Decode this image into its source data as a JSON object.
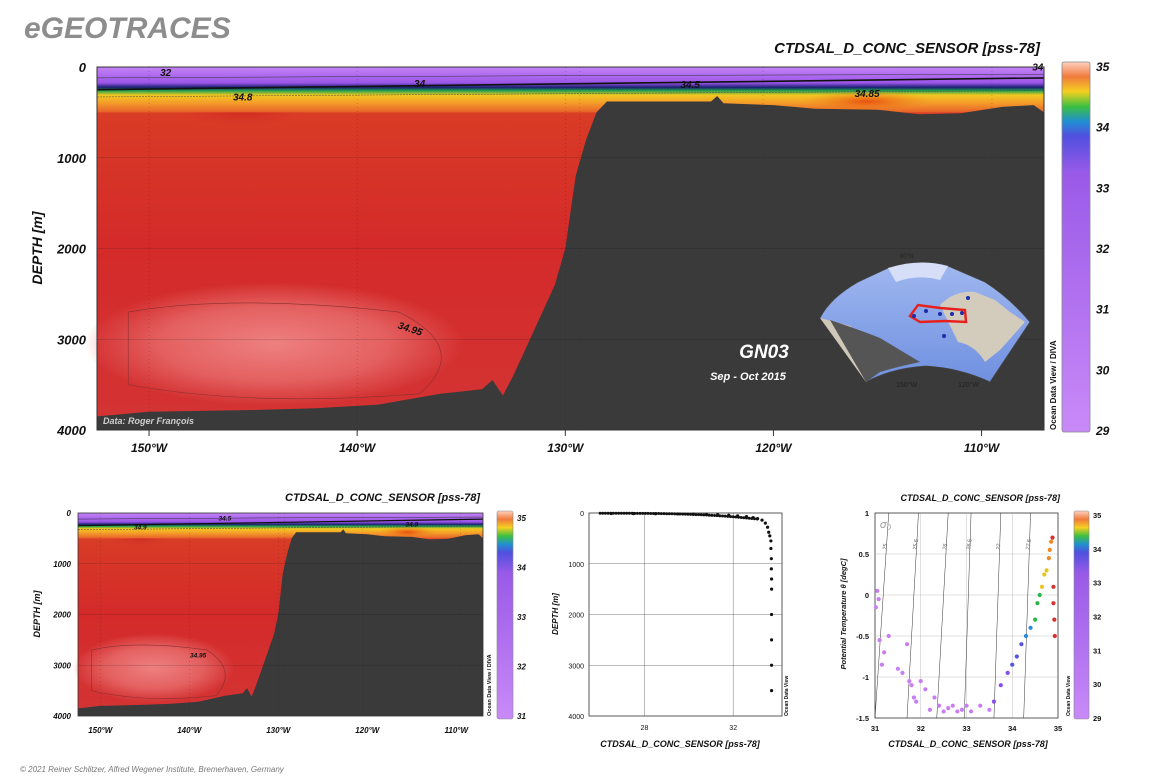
{
  "header": {
    "logo": "eGEOTRACES",
    "footer": "© 2021 Reiner Schlitzer, Alfred Wegener Institute, Bremerhaven, Germany"
  },
  "colors": {
    "land": "#3a3a3a",
    "accent_red": "#d2322d",
    "purple": "#b57bf0",
    "orange": "#f08a1e",
    "grey_text": "#8a8a8a"
  },
  "main_section": {
    "title": "CTDSAL_D_CONC_SENSOR [pss-78]",
    "ylabel": "DEPTH [m]",
    "credit": "Data: Roger François",
    "cruise_name": "GN03",
    "cruise_date": "Sep - Oct 2015",
    "odv_label": "Ocean Data View / DIVA",
    "depth_ticks": [
      "0",
      "1000",
      "2000",
      "3000",
      "4000"
    ],
    "lon_ticks": [
      "150°W",
      "140°W",
      "130°W",
      "120°W",
      "110°W"
    ],
    "colorbar_ticks": [
      "35",
      "34",
      "33",
      "32",
      "31",
      "30",
      "29"
    ],
    "contour_labels": [
      "32",
      "34",
      "34.5",
      "34.8",
      "34.85",
      "34.95",
      "34"
    ]
  },
  "small_section": {
    "title": "CTDSAL_D_CONC_SENSOR [pss-78]",
    "ylabel": "DEPTH [m]",
    "odv_label": "Ocean Data View / DIVA",
    "depth_ticks": [
      "0",
      "1000",
      "2000",
      "3000",
      "4000"
    ],
    "lon_ticks": [
      "150°W",
      "140°W",
      "130°W",
      "120°W",
      "110°W"
    ],
    "colorbar_ticks": [
      "35",
      "34",
      "33",
      "32",
      "31"
    ],
    "contour_labels": [
      "34.9",
      "34.5",
      "34.9",
      "34.95"
    ]
  },
  "profile_plot": {
    "xlabel": "CTDSAL_D_CONC_SENSOR [pss-78]",
    "ylabel": "DEPTH [m]",
    "odv_label": "Ocean Data View",
    "depth_ticks": [
      "0",
      "1000",
      "2000",
      "3000",
      "4000"
    ],
    "x_ticks": [
      "28",
      "32"
    ]
  },
  "ts_plot": {
    "title": "CTDSAL_D_CONC_SENSOR [pss-78]",
    "xlabel": "CTDSAL_D_CONC_SENSOR [pss-78]",
    "ylabel": "Potential Temperature θ [degC]",
    "odv_label": "Ocean Data View",
    "sigma_label": "σ₀",
    "x_ticks": [
      "31",
      "32",
      "33",
      "34",
      "35"
    ],
    "y_ticks": [
      "1",
      "0.5",
      "0",
      "-0.5",
      "-1",
      "-1.5"
    ],
    "isopycnal_labels": [
      "25",
      "25.5",
      "26",
      "26.5",
      "27",
      "27.5"
    ],
    "colorbar_ticks": [
      "35",
      "34",
      "33",
      "32",
      "31",
      "30",
      "29"
    ]
  },
  "chart_data": [
    {
      "type": "heatmap",
      "title": "CTDSAL_D_CONC_SENSOR [pss-78]",
      "xlabel": "",
      "ylabel": "DEPTH [m]",
      "xlim": [
        -152.5,
        -107
      ],
      "ylim": [
        4000,
        0
      ],
      "colorbar": {
        "min": 29,
        "max": 35
      },
      "bathymetry": [
        [
          -152.5,
          3850
        ],
        [
          -150,
          3800
        ],
        [
          -145,
          3780
        ],
        [
          -142,
          3760
        ],
        [
          -139,
          3720
        ],
        [
          -136,
          3600
        ],
        [
          -134,
          3550
        ],
        [
          -133.5,
          3450
        ],
        [
          -133,
          3620
        ],
        [
          -132.5,
          3400
        ],
        [
          -131.5,
          2900
        ],
        [
          -130.5,
          2400
        ],
        [
          -130,
          2000
        ],
        [
          -129.5,
          1200
        ],
        [
          -129,
          800
        ],
        [
          -128.5,
          500
        ],
        [
          -128,
          380
        ],
        [
          -125,
          380
        ],
        [
          -123,
          380
        ],
        [
          -122.7,
          320
        ],
        [
          -122.4,
          400
        ],
        [
          -120,
          420
        ],
        [
          -118,
          460
        ],
        [
          -115,
          470
        ],
        [
          -113,
          520
        ],
        [
          -111,
          510
        ],
        [
          -109,
          440
        ],
        [
          -107.5,
          420
        ],
        [
          -107,
          500
        ]
      ],
      "contours": [
        {
          "label": "32",
          "lon": -149.2,
          "depth": 100
        },
        {
          "label": "34",
          "lon": -137,
          "depth": 220
        },
        {
          "label": "34.5",
          "lon": -124,
          "depth": 230
        },
        {
          "label": "34.8",
          "lon": -145.5,
          "depth": 370
        },
        {
          "label": "34.85",
          "lon": -115.5,
          "depth": 330
        },
        {
          "label": "34.95",
          "lon": -137.5,
          "depth": 2920
        },
        {
          "label": "34",
          "lon": -107.3,
          "depth": 40
        }
      ]
    },
    {
      "type": "scatter",
      "xlabel": "CTDSAL_D_CONC_SENSOR [pss-78]",
      "ylabel": "DEPTH [m]",
      "xlim": [
        25.5,
        34.2
      ],
      "ylim": [
        4000,
        0
      ],
      "points": [
        [
          26.5,
          10
        ],
        [
          27.5,
          12
        ],
        [
          28.5,
          15
        ],
        [
          29.5,
          18
        ],
        [
          30.2,
          22
        ],
        [
          30.8,
          28
        ],
        [
          31.3,
          35
        ],
        [
          31.8,
          45
        ],
        [
          32.2,
          55
        ],
        [
          32.6,
          70
        ],
        [
          32.9,
          90
        ],
        [
          33.1,
          110
        ],
        [
          33.3,
          140
        ],
        [
          33.45,
          200
        ],
        [
          33.55,
          280
        ],
        [
          33.6,
          380
        ],
        [
          33.65,
          450
        ],
        [
          33.7,
          550
        ],
        [
          33.7,
          700
        ],
        [
          33.72,
          900
        ],
        [
          33.72,
          1100
        ],
        [
          33.73,
          1300
        ],
        [
          33.73,
          1500
        ],
        [
          33.73,
          2000
        ],
        [
          33.73,
          2500
        ],
        [
          33.73,
          3000
        ],
        [
          33.73,
          3500
        ]
      ]
    },
    {
      "type": "scatter",
      "title": "CTDSAL_D_CONC_SENSOR [pss-78]",
      "xlabel": "CTDSAL_D_CONC_SENSOR [pss-78]",
      "ylabel": "Potential Temperature θ [degC]",
      "xlim": [
        31,
        35
      ],
      "ylim": [
        -1.5,
        1
      ],
      "points": [
        [
          31.02,
          -0.15
        ],
        [
          31.05,
          0.05
        ],
        [
          31.08,
          -0.05
        ],
        [
          31.1,
          -0.55
        ],
        [
          31.15,
          -0.85
        ],
        [
          31.2,
          -0.7
        ],
        [
          31.3,
          -0.5
        ],
        [
          31.5,
          -0.9
        ],
        [
          31.6,
          -0.95
        ],
        [
          31.7,
          -0.6
        ],
        [
          31.75,
          -1.05
        ],
        [
          31.8,
          -1.1
        ],
        [
          31.85,
          -1.25
        ],
        [
          31.9,
          -1.3
        ],
        [
          32.0,
          -1.05
        ],
        [
          32.1,
          -1.15
        ],
        [
          32.2,
          -1.4
        ],
        [
          32.3,
          -1.25
        ],
        [
          32.4,
          -1.35
        ],
        [
          32.5,
          -1.42
        ],
        [
          32.6,
          -1.38
        ],
        [
          32.7,
          -1.35
        ],
        [
          32.8,
          -1.42
        ],
        [
          32.9,
          -1.4
        ],
        [
          33.0,
          -1.35
        ],
        [
          33.1,
          -1.42
        ],
        [
          33.3,
          -1.35
        ],
        [
          33.5,
          -1.4
        ],
        [
          33.6,
          -1.3
        ],
        [
          33.75,
          -1.1
        ],
        [
          33.9,
          -0.95
        ],
        [
          34.0,
          -0.85
        ],
        [
          34.1,
          -0.75
        ],
        [
          34.2,
          -0.6
        ],
        [
          34.3,
          -0.5
        ],
        [
          34.4,
          -0.4
        ],
        [
          34.5,
          -0.3
        ],
        [
          34.55,
          -0.1
        ],
        [
          34.6,
          0.0
        ],
        [
          34.65,
          0.1
        ],
        [
          34.7,
          0.25
        ],
        [
          34.75,
          0.3
        ],
        [
          34.8,
          0.45
        ],
        [
          34.82,
          0.55
        ],
        [
          34.85,
          0.65
        ],
        [
          34.88,
          0.7
        ],
        [
          34.9,
          0.1
        ],
        [
          34.9,
          -0.1
        ],
        [
          34.92,
          -0.3
        ],
        [
          34.93,
          -0.5
        ]
      ],
      "isopycnals": [
        {
          "label": "25",
          "x0": 31.0,
          "y0": -1.5,
          "x1": 31.3,
          "y1": 1.0
        },
        {
          "label": "25.5",
          "x0": 31.7,
          "y0": -1.5,
          "x1": 31.95,
          "y1": 1.0
        },
        {
          "label": "26",
          "x0": 32.35,
          "y0": -1.5,
          "x1": 32.6,
          "y1": 1.0
        },
        {
          "label": "26.5",
          "x0": 32.95,
          "y0": -1.5,
          "x1": 33.1,
          "y1": 1.0
        },
        {
          "label": "27",
          "x0": 33.6,
          "y0": -1.5,
          "x1": 33.75,
          "y1": 1.0
        },
        {
          "label": "27.5",
          "x0": 34.25,
          "y0": -1.5,
          "x1": 34.4,
          "y1": 1.0
        }
      ]
    }
  ]
}
